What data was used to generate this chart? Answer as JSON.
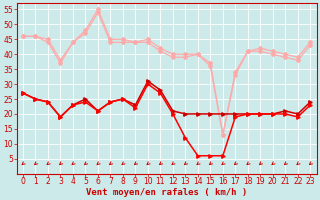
{
  "xlabel": "Vent moyen/en rafales ( km/h )",
  "background_color": "#cceaea",
  "grid_color": "#ffffff",
  "xlim": [
    -0.5,
    23.5
  ],
  "ylim": [
    0,
    57
  ],
  "yticks": [
    5,
    10,
    15,
    20,
    25,
    30,
    35,
    40,
    45,
    50,
    55
  ],
  "xticks": [
    0,
    1,
    2,
    3,
    4,
    5,
    6,
    7,
    8,
    9,
    10,
    11,
    12,
    13,
    14,
    15,
    16,
    17,
    18,
    19,
    20,
    21,
    22,
    23
  ],
  "hours": [
    0,
    1,
    2,
    3,
    4,
    5,
    6,
    7,
    8,
    9,
    10,
    11,
    12,
    13,
    14,
    15,
    16,
    17,
    18,
    19,
    20,
    21,
    22,
    23
  ],
  "pink_color": "#ffaaaa",
  "dark_red_color": "#cc0000",
  "red_color": "#ff0000",
  "rafales1": [
    46,
    46,
    45,
    38,
    44,
    48,
    55,
    45,
    45,
    44,
    45,
    42,
    40,
    40,
    40,
    37,
    13,
    34,
    41,
    42,
    41,
    40,
    39,
    44
  ],
  "rafales2": [
    46,
    46,
    44,
    37,
    44,
    47,
    54,
    44,
    44,
    44,
    44,
    41,
    39,
    39,
    40,
    36,
    13,
    33,
    41,
    41,
    40,
    39,
    38,
    43
  ],
  "vent1": [
    27,
    25,
    24,
    19,
    23,
    25,
    21,
    24,
    25,
    23,
    31,
    28,
    21,
    20,
    20,
    20,
    20,
    20,
    20,
    20,
    20,
    21,
    20,
    24
  ],
  "vent2": [
    27,
    25,
    24,
    19,
    23,
    24,
    21,
    24,
    25,
    22,
    30,
    27,
    20,
    12,
    6,
    6,
    6,
    19,
    20,
    20,
    20,
    20,
    19,
    23
  ],
  "arrow_color": "#cc0000",
  "tick_color": "#cc0000",
  "label_fontsize": 5.5,
  "xlabel_fontsize": 6.5
}
